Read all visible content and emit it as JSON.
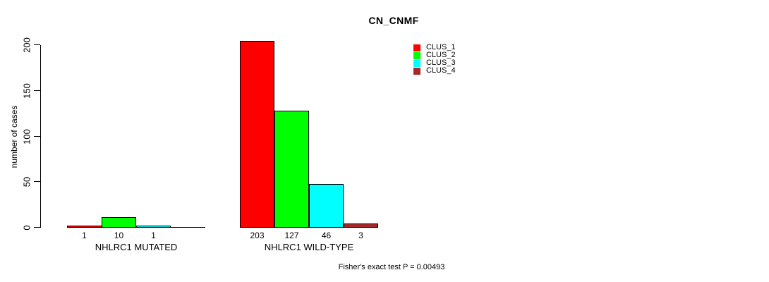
{
  "chart_data": {
    "type": "bar",
    "title": "CN_CNMF",
    "ylabel": "number of cases",
    "ylim": [
      0,
      200
    ],
    "yticks": [
      0,
      50,
      100,
      150,
      200
    ],
    "grid": false,
    "legend_position": "top-right",
    "bar_value_labels_shown": true,
    "groups": [
      {
        "label": "NHLRC1 MUTATED"
      },
      {
        "label": "NHLRC1 WILD-TYPE"
      }
    ],
    "series": [
      {
        "name": "CLUS_1",
        "color": "#FF0000",
        "values": [
          1,
          203
        ]
      },
      {
        "name": "CLUS_2",
        "color": "#00FF00",
        "values": [
          10,
          127
        ]
      },
      {
        "name": "CLUS_3",
        "color": "#00FFFF",
        "values": [
          1,
          46
        ]
      },
      {
        "name": "CLUS_4",
        "color": "#A52A2A",
        "values": [
          0,
          3
        ]
      }
    ],
    "annotation": "Fisher's exact test P = 0.00493"
  }
}
